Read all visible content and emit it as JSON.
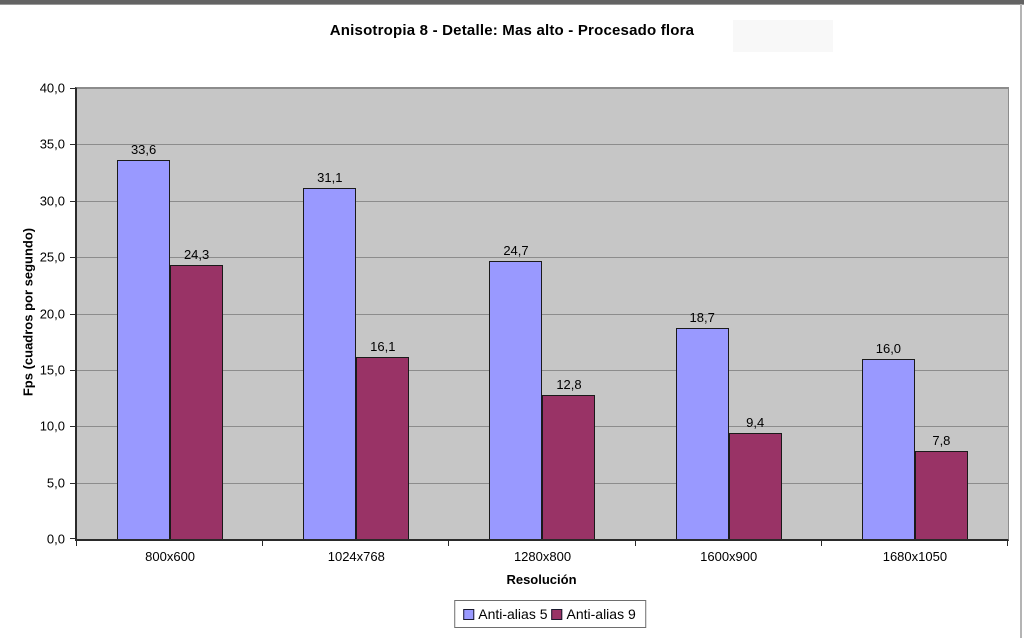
{
  "page": {
    "top_strip_color": "#636363",
    "background_color": "#ffffff",
    "plot_background_color": "#c6c6c6",
    "gridline_color": "#8c8c8c"
  },
  "chart_data": {
    "type": "bar",
    "title": "Anisotropia 8 - Detalle: Mas alto - Procesado flora",
    "xlabel": "Resolución",
    "ylabel": "Fps (cuadros por segundo)",
    "categories": [
      "800x600",
      "1024x768",
      "1280x800",
      "1600x900",
      "1680x1050"
    ],
    "series": [
      {
        "name": "Anti-alias 5",
        "color": "#9999ff",
        "values": [
          33.6,
          31.1,
          24.7,
          18.7,
          16.0
        ]
      },
      {
        "name": "Anti-alias 9",
        "color": "#993366",
        "values": [
          24.3,
          16.1,
          12.8,
          9.4,
          7.8
        ]
      }
    ],
    "value_labels": [
      [
        "33,6",
        "31,1",
        "24,7",
        "18,7",
        "16,0"
      ],
      [
        "24,3",
        "16,1",
        "12,8",
        "9,4",
        "7,8"
      ]
    ],
    "ylim": [
      0,
      40
    ],
    "ytick_step": 5,
    "ytick_labels": [
      "0,0",
      "5,0",
      "10,0",
      "15,0",
      "20,0",
      "25,0",
      "30,0",
      "35,0",
      "40,0"
    ],
    "grid": true,
    "legend_position": "bottom",
    "decimal_separator": ","
  }
}
